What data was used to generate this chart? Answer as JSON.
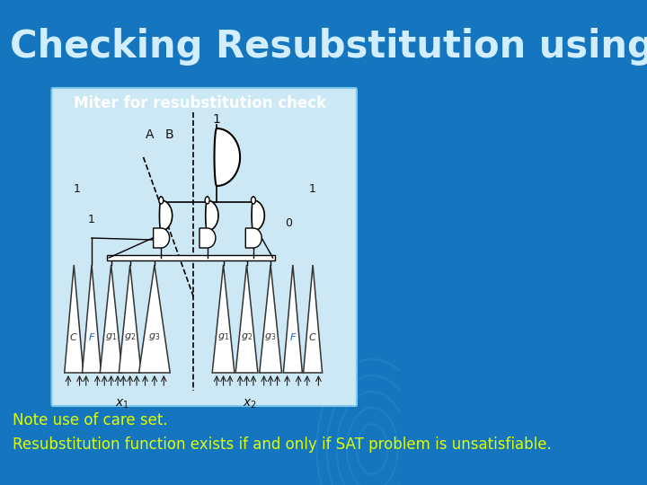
{
  "bg_color": "#1575be",
  "title": "Checking Resubstitution using SAT",
  "title_color": "#d0eeff",
  "title_fontsize": 30,
  "subtitle": "Miter for resubstitution check",
  "subtitle_color": "#ffffff",
  "subtitle_fontsize": 12,
  "diagram_bg": "#cce8f5",
  "note1": "Note use of care set.",
  "note1_color": "#ddff00",
  "note1_fontsize": 12,
  "note2": "Resubstitution function exists if and only if SAT problem is unsatisfiable.",
  "note2_color": "#ddff00",
  "note2_fontsize": 12
}
